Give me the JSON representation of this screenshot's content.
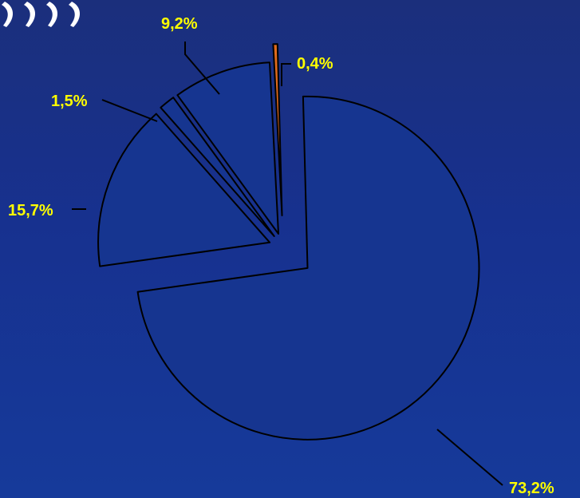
{
  "chart_data": {
    "type": "pie",
    "exploded": true,
    "grid": false,
    "legend": "none",
    "title": "",
    "categories": [
      "",
      "",
      "",
      "",
      ""
    ],
    "values": [
      73.2,
      15.7,
      1.5,
      9.2,
      0.4
    ],
    "labels": [
      "73,2%",
      "15,7%",
      "1,5%",
      "9,2%",
      "0,4%"
    ],
    "slice_colors": [
      "#163590",
      "#163590",
      "#163590",
      "#163590",
      "#e06a1c"
    ],
    "label_color": "#ffff00",
    "outline_color": "#000000"
  },
  "colors": {
    "background": "#17318f",
    "label_text": "#ffff00",
    "outline": "#000000"
  },
  "decor": {
    "icon": "closing-quote-marks-icon"
  }
}
